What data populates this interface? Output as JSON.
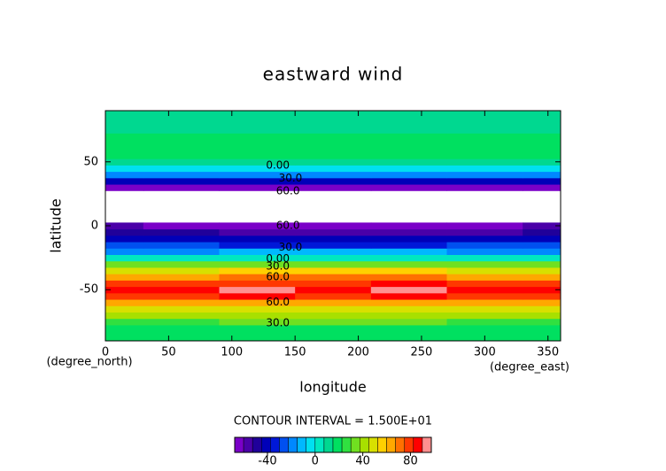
{
  "chart_data": {
    "type": "contour",
    "title": "eastward wind",
    "xlabel": "longitude",
    "ylabel": "latitude",
    "xunit": "(degree_east)",
    "yunit": "(degree_north)",
    "xlim": [
      0,
      360
    ],
    "ylim": [
      -90,
      90
    ],
    "xticks": [
      0,
      50,
      100,
      150,
      200,
      250,
      300,
      350
    ],
    "yticks": [
      -50,
      0,
      50
    ],
    "x": [
      0,
      60,
      120,
      180,
      240,
      300,
      360
    ],
    "y": [
      -90,
      -85,
      -80,
      -75,
      -70,
      -65,
      -60,
      -55,
      -50,
      -45,
      -40,
      -35,
      -30,
      -25,
      -20,
      -15,
      -10,
      -5,
      0,
      5,
      10,
      15,
      20,
      25,
      30,
      35,
      40,
      45,
      50,
      55,
      60,
      65,
      70,
      75,
      80,
      85,
      90
    ],
    "z": [
      [
        15,
        15,
        15,
        15,
        15,
        15,
        15
      ],
      [
        17,
        17,
        17,
        17,
        17,
        17,
        17
      ],
      [
        20,
        20,
        21,
        21,
        21,
        20,
        20
      ],
      [
        28,
        28,
        30,
        30,
        30,
        28,
        28
      ],
      [
        38,
        38,
        40,
        40,
        40,
        38,
        38
      ],
      [
        50,
        50,
        52,
        52,
        52,
        50,
        50
      ],
      [
        63,
        64,
        66,
        65,
        66,
        64,
        63
      ],
      [
        78,
        80,
        84,
        82,
        85,
        80,
        78
      ],
      [
        84,
        86,
        92,
        88,
        92,
        86,
        84
      ],
      [
        76,
        78,
        82,
        80,
        83,
        78,
        76
      ],
      [
        66,
        67,
        68,
        68,
        69,
        67,
        66
      ],
      [
        52,
        52,
        54,
        54,
        55,
        52,
        52
      ],
      [
        32,
        32,
        34,
        34,
        35,
        32,
        32
      ],
      [
        4,
        4,
        5,
        5,
        5,
        4,
        4
      ],
      [
        -16,
        -16,
        -15,
        -15,
        -15,
        -16,
        -16
      ],
      [
        -30,
        -30,
        -31,
        -31,
        -31,
        -30,
        -30
      ],
      [
        -40,
        -41,
        -42,
        -43,
        -44,
        -42,
        -40
      ],
      [
        -50,
        -52,
        -54,
        -56,
        -58,
        -55,
        -50
      ],
      [
        -60,
        -62,
        -64,
        -67,
        -69,
        -65,
        -60
      ],
      [
        null,
        null,
        null,
        null,
        null,
        null,
        null
      ],
      [
        null,
        null,
        null,
        null,
        null,
        null,
        null
      ],
      [
        null,
        null,
        null,
        null,
        null,
        null,
        null
      ],
      [
        null,
        null,
        null,
        null,
        null,
        null,
        null
      ],
      [
        null,
        null,
        null,
        null,
        null,
        null,
        null
      ],
      [
        -62,
        -62,
        -63,
        -63,
        -63,
        -62,
        -62
      ],
      [
        -40,
        -40,
        -41,
        -41,
        -41,
        -40,
        -40
      ],
      [
        -18,
        -18,
        -18,
        -18,
        -18,
        -18,
        -18
      ],
      [
        -2,
        -2,
        -2,
        -2,
        -2,
        -2,
        -2
      ],
      [
        8,
        8,
        8,
        8,
        8,
        8,
        8
      ],
      [
        15,
        15,
        15,
        15,
        15,
        15,
        15
      ],
      [
        18,
        18,
        18,
        18,
        18,
        18,
        18
      ],
      [
        18,
        18,
        19,
        19,
        19,
        18,
        18
      ],
      [
        17,
        17,
        17,
        17,
        17,
        17,
        17
      ],
      [
        14,
        14,
        14,
        14,
        14,
        14,
        14
      ],
      [
        12,
        12,
        12,
        12,
        12,
        12,
        12
      ],
      [
        11,
        11,
        11,
        11,
        11,
        11,
        11
      ],
      [
        10,
        10,
        10,
        10,
        10,
        10,
        10
      ]
    ],
    "contour_labels": [
      {
        "text": "0.00",
        "x": 127,
        "y": 47
      },
      {
        "text": "30.0",
        "x": 137,
        "y": 37
      },
      {
        "text": "60.0",
        "x": 135,
        "y": 27
      },
      {
        "text": "60.0",
        "x": 135,
        "y": 0
      },
      {
        "text": "30.0",
        "x": 137,
        "y": -17
      },
      {
        "text": "0.00",
        "x": 127,
        "y": -26
      },
      {
        "text": "30.0",
        "x": 127,
        "y": -32
      },
      {
        "text": "60.0",
        "x": 127,
        "y": -40
      },
      {
        "text": "60.0",
        "x": 127,
        "y": -60
      },
      {
        "text": "30.0",
        "x": 127,
        "y": -76
      }
    ],
    "contour_interval_label": "CONTOUR INTERVAL = 1.500E+01",
    "colorbar": {
      "levels": [
        -67.5,
        -60,
        -52.5,
        -45,
        -37.5,
        -30,
        -22.5,
        -15,
        -7.5,
        0,
        7.5,
        15,
        22.5,
        30,
        37.5,
        45,
        52.5,
        60,
        67.5,
        75,
        82.5,
        90,
        97.5
      ],
      "colors": [
        "#7a00c8",
        "#4a00a8",
        "#20009a",
        "#0000b8",
        "#0018d8",
        "#0050f0",
        "#0088ff",
        "#00b8ff",
        "#00e0f0",
        "#00e8c0",
        "#00d890",
        "#00e060",
        "#30e040",
        "#70e020",
        "#a8e000",
        "#d8e000",
        "#ffd000",
        "#ffa800",
        "#ff7000",
        "#ff3800",
        "#ff0000",
        "#ff9090"
      ],
      "ticks": [
        -40,
        0,
        40,
        80
      ]
    }
  }
}
